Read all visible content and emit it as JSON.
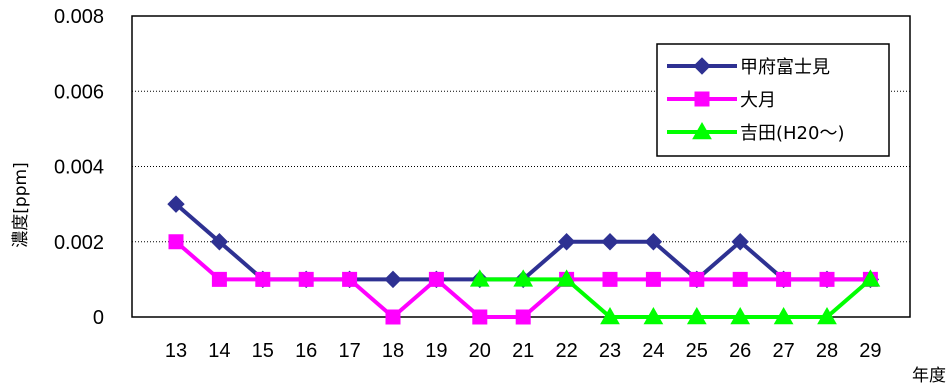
{
  "chart_data": {
    "type": "line",
    "title": "",
    "xlabel": "年度",
    "ylabel": "濃度[ppm]",
    "categories": [
      "13",
      "14",
      "15",
      "16",
      "17",
      "18",
      "19",
      "20",
      "21",
      "22",
      "23",
      "24",
      "25",
      "26",
      "27",
      "28",
      "29"
    ],
    "ylim": [
      0,
      0.008
    ],
    "yticks": [
      0,
      0.002,
      0.004,
      0.006,
      0.008
    ],
    "ytick_labels": [
      "0",
      "0.002",
      "0.004",
      "0.006",
      "0.008"
    ],
    "grid": "horizontal dotted",
    "legend_position": "top-right",
    "series": [
      {
        "name": "甲府富士見",
        "color": "#2E3192",
        "marker": "diamond",
        "values": [
          0.003,
          0.002,
          0.001,
          0.001,
          0.001,
          0.001,
          0.001,
          0.001,
          0.001,
          0.002,
          0.002,
          0.002,
          0.001,
          0.002,
          0.001,
          0.001,
          0.001
        ]
      },
      {
        "name": "大月",
        "color": "#FF00FF",
        "marker": "square",
        "values": [
          0.002,
          0.001,
          0.001,
          0.001,
          0.001,
          0,
          0.001,
          0,
          0,
          0.001,
          0.001,
          0.001,
          0.001,
          0.001,
          0.001,
          0.001,
          0.001
        ]
      },
      {
        "name": "吉田(H20～)",
        "color": "#00FF00",
        "marker": "triangle",
        "values": [
          null,
          null,
          null,
          null,
          null,
          null,
          null,
          0.001,
          0.001,
          0.001,
          0,
          0,
          0,
          0,
          0,
          0,
          0.001
        ]
      }
    ]
  }
}
